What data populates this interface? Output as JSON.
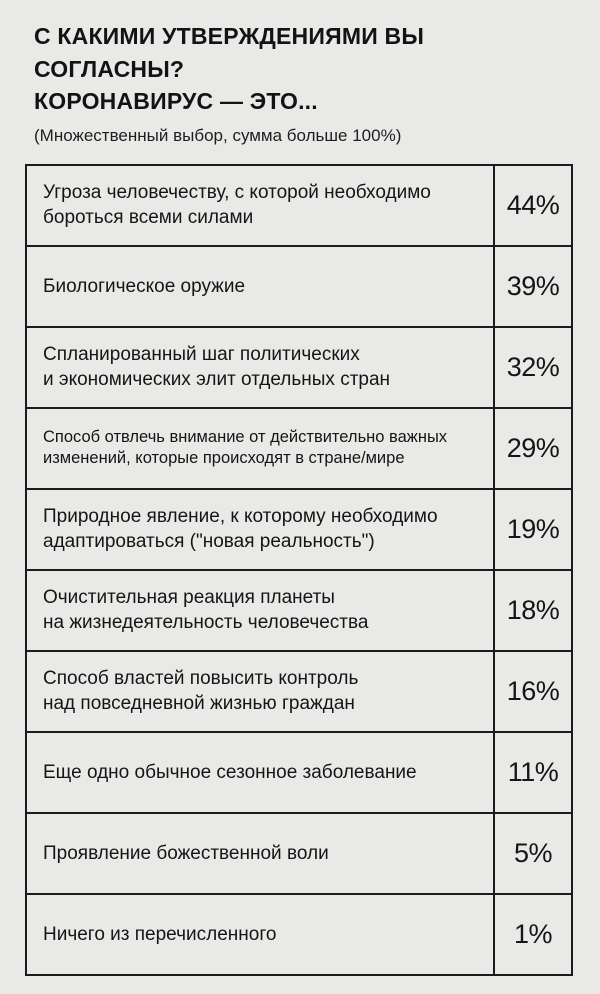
{
  "header": {
    "title_line1": "С КАКИМИ УТВЕРЖДЕНИЯМИ ВЫ СОГЛАСНЫ?",
    "title_line2": "КОРОНАВИРУС — ЭТО...",
    "subtitle": "(Множественный выбор, сумма больше 100%)"
  },
  "colors": {
    "background": "#e9e9e7",
    "text": "#151515",
    "border": "#1c1c1c"
  },
  "table": {
    "rows": [
      {
        "label": "Угроза человечеству, с которой необходимо\nбороться всеми силами",
        "value": "44%"
      },
      {
        "label": "Биологическое оружие",
        "value": "39%"
      },
      {
        "label": "Спланированный шаг политических\nи экономических элит отдельных стран",
        "value": "32%"
      },
      {
        "label": "Способ отвлечь внимание от действительно важных\nизменений, которые происходят в стране/мире",
        "value": "29%"
      },
      {
        "label": "Природное явление, к которому необходимо\nадаптироваться (\"новая реальность\")",
        "value": "19%"
      },
      {
        "label": "Очистительная реакция планеты\nна жизнедеятельность человечества",
        "value": "18%"
      },
      {
        "label": "Способ властей повысить контроль\nнад повседневной жизнью граждан",
        "value": "16%"
      },
      {
        "label": "Еще одно обычное сезонное заболевание",
        "value": "11%"
      },
      {
        "label": "Проявление божественной воли",
        "value": "5%"
      },
      {
        "label": "Ничего из перечисленного",
        "value": "1%"
      }
    ]
  },
  "chart_data": {
    "type": "table",
    "title": "С КАКИМИ УТВЕРЖДЕНИЯМИ ВЫ СОГЛАСНЫ? КОРОНАВИРУС — ЭТО...",
    "subtitle": "(Множественный выбор, сумма больше 100%)",
    "categories": [
      "Угроза человечеству, с которой необходимо бороться всеми силами",
      "Биологическое оружие",
      "Спланированный шаг политических и экономических элит отдельных стран",
      "Способ отвлечь внимание от действительно важных изменений, которые происходят в стране/мире",
      "Природное явление, к которому необходимо адаптироваться (\"новая реальность\")",
      "Очистительная реакция планеты на жизнедеятельность человечества",
      "Способ властей повысить контроль над повседневной жизнью граждан",
      "Еще одно обычное сезонное заболевание",
      "Проявление божественной воли",
      "Ничего из перечисленного"
    ],
    "values": [
      44,
      39,
      32,
      29,
      19,
      18,
      16,
      11,
      5,
      1
    ],
    "unit": "%",
    "note": "multiple choice, sum exceeds 100%"
  }
}
